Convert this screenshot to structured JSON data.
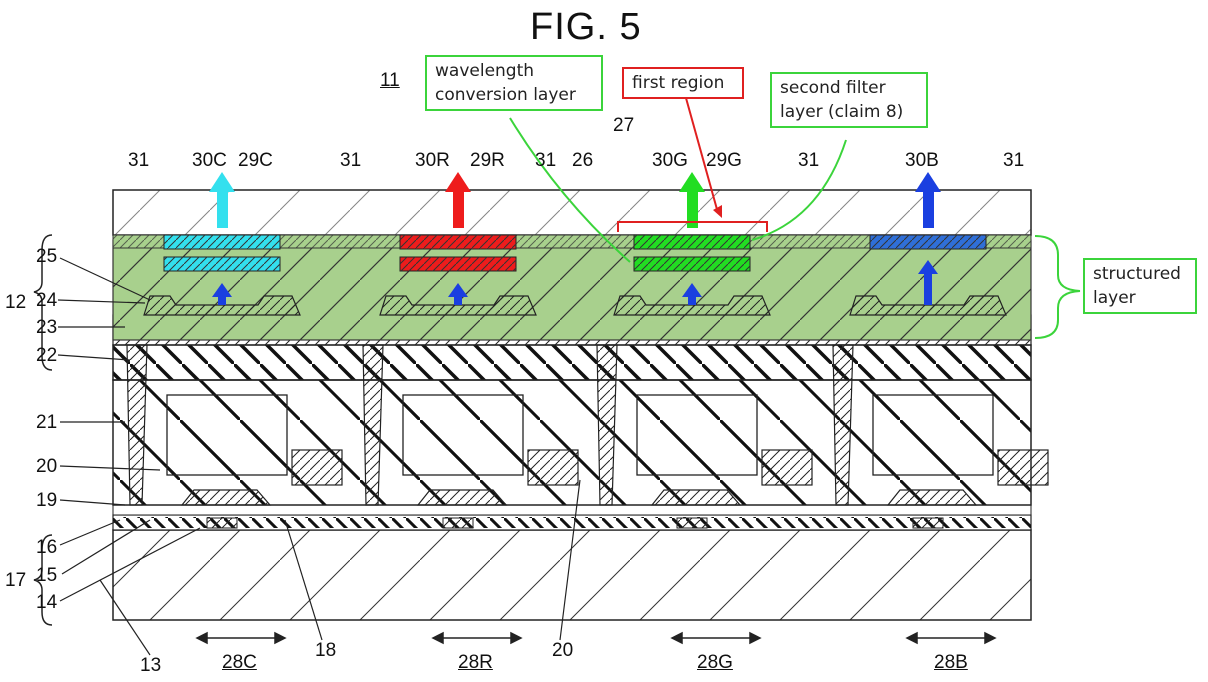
{
  "figure": {
    "title": "FIG. 5"
  },
  "callouts": {
    "wavelength": [
      "wavelength",
      "conversion layer"
    ],
    "first_region": [
      "first region"
    ],
    "second_filter": [
      "second filter",
      "layer (claim 8)"
    ],
    "structured": [
      "structured",
      "layer"
    ]
  },
  "refs": {
    "r11": "11",
    "r27": "27",
    "r31a": "31",
    "r30C": "30C",
    "r29C": "29C",
    "r31b": "31",
    "r30R": "30R",
    "r29R": "29R",
    "r31c": "31",
    "r26": "26",
    "r30G": "30G",
    "r29G": "29G",
    "r31d": "31",
    "r30B": "30B",
    "r31e": "31",
    "r12": "12",
    "r25": "25",
    "r24": "24",
    "r23": "23",
    "r22": "22",
    "r21": "21",
    "r20": "20",
    "r19": "19",
    "r17": "17",
    "r16": "16",
    "r15": "15",
    "r14": "14",
    "r13": "13",
    "r18": "18",
    "r20b": "20",
    "r28C": "28C",
    "r28R": "28R",
    "r28G": "28G",
    "r28B": "28B"
  },
  "colors": {
    "green_layer": "#a8d08d",
    "callout_green": "#3bd43b",
    "callout_red": "#e02020",
    "cyan": "#33e0ee",
    "red": "#ee1c1c",
    "green": "#22dd22",
    "blue": "#1a3fe0",
    "blue_filter": "#2f6fd8"
  }
}
